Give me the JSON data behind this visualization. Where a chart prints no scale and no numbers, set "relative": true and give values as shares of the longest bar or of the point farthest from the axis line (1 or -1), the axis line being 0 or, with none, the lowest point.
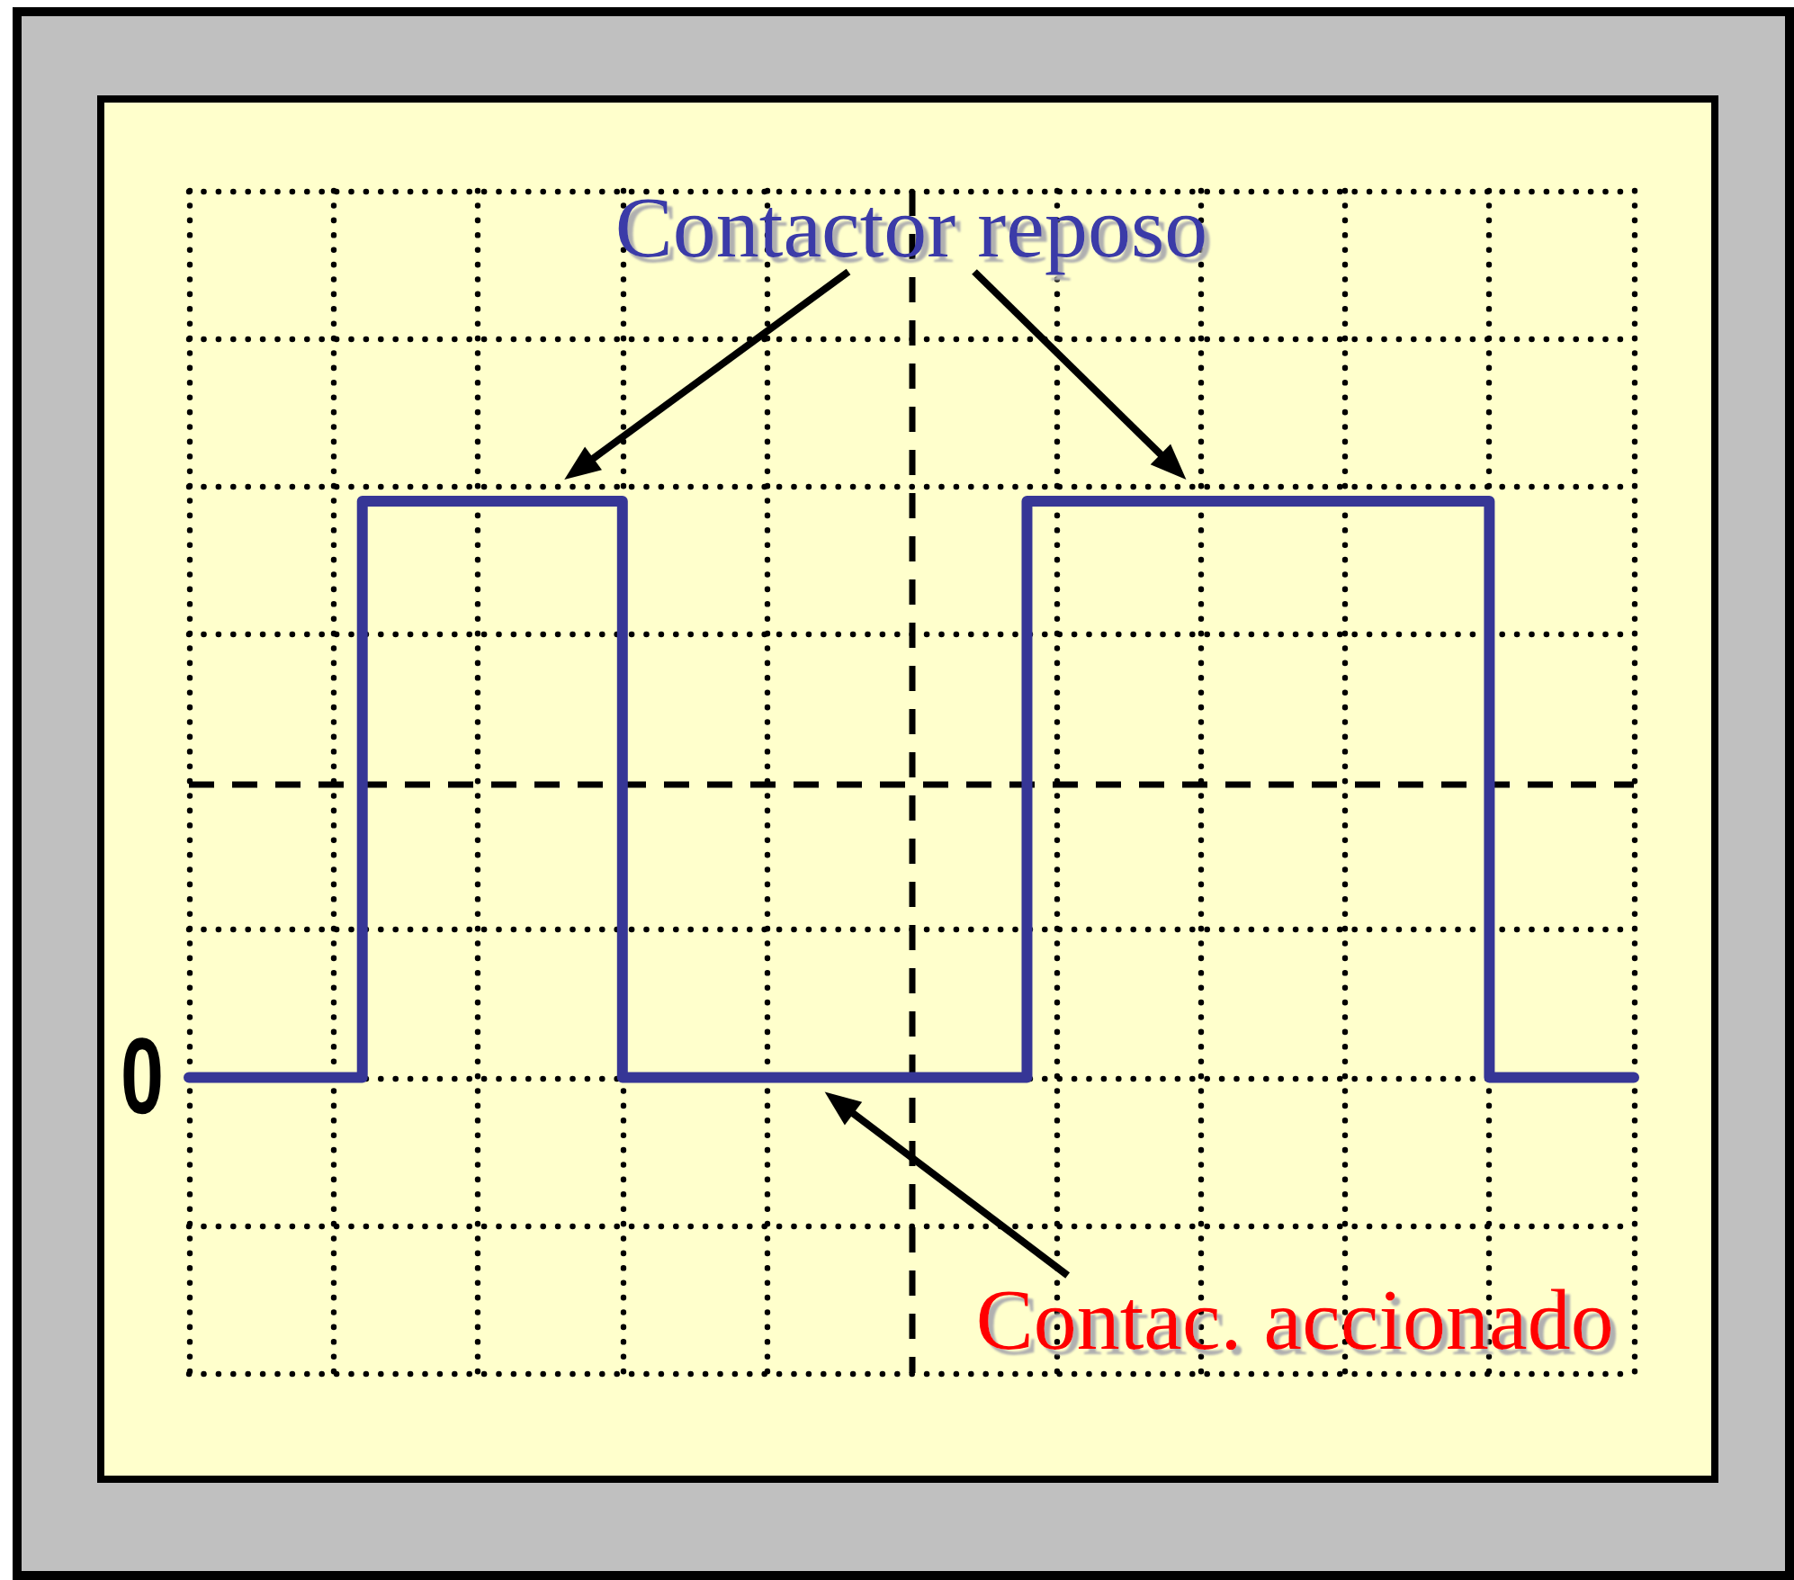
{
  "chart_data": {
    "type": "step",
    "relative": true,
    "categories": [
      null,
      null,
      null,
      null,
      null,
      null,
      null,
      null,
      null,
      null,
      null,
      null,
      null,
      null,
      null,
      null,
      null,
      null,
      null,
      null,
      null,
      null,
      null,
      null,
      null,
      null,
      null,
      null,
      null,
      null,
      null,
      null,
      null,
      null,
      null,
      null,
      null,
      null,
      null,
      null,
      null,
      null,
      null,
      null,
      null,
      null,
      null,
      null,
      null,
      null,
      null
    ],
    "series": [
      {
        "color": "#363696",
        "values": [
          0,
          0,
          0,
          0,
          0,
          0,
          1,
          1,
          1,
          1,
          1,
          1,
          1,
          1,
          1,
          0,
          0,
          0,
          0,
          0,
          0,
          0,
          0,
          0,
          0,
          0,
          0,
          0,
          0,
          1,
          1,
          1,
          1,
          1,
          1,
          1,
          1,
          1,
          1,
          1,
          1,
          1,
          1,
          1,
          1,
          0,
          0,
          0,
          0,
          0,
          0
        ]
      }
    ],
    "annotations": [
      "Contactor reposo",
      "0",
      "Contac. accionado"
    ],
    "ref_lines": [
      {
        "axis": "y",
        "value": 0.51,
        "color": "#000000",
        "line_style": "dashed"
      }
    ],
    "grid": true,
    "marker": "none",
    "line_style": "solid"
  }
}
